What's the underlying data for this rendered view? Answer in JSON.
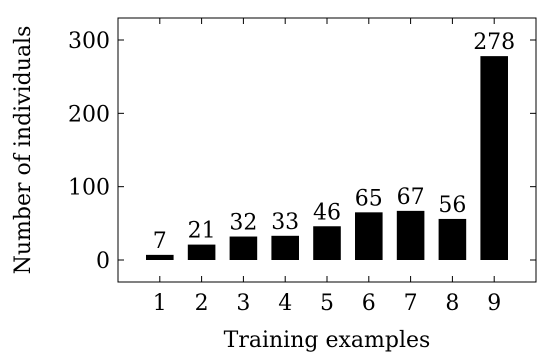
{
  "chart_data": {
    "type": "bar",
    "xlabel": "Training examples",
    "ylabel": "Number of individuals",
    "categories": [
      "1",
      "2",
      "3",
      "4",
      "5",
      "6",
      "7",
      "8",
      "9"
    ],
    "values": [
      7,
      21,
      32,
      33,
      46,
      65,
      67,
      56,
      278
    ],
    "data_labels": [
      "7",
      "21",
      "32",
      "33",
      "46",
      "65",
      "67",
      "56",
      "278"
    ],
    "yticks": [
      0,
      100,
      200,
      300
    ],
    "ytick_labels": [
      "0",
      "100",
      "200",
      "300"
    ],
    "ylim": [
      -30,
      330
    ],
    "xlim": [
      0,
      10
    ],
    "grid": false,
    "bar_color": "#000000"
  }
}
